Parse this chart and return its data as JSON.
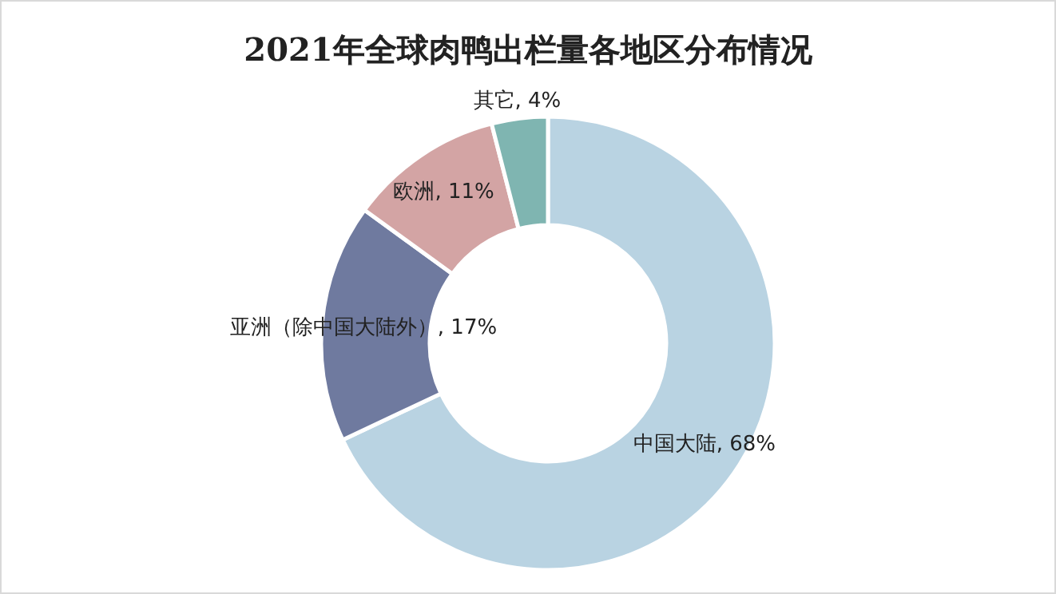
{
  "chart_data": {
    "type": "donut",
    "title": "2021年全球肉鸭出栏量各地区分布情况",
    "categories": [
      "中国大陆",
      "亚洲（除中国大陆外）",
      "欧洲",
      "其它"
    ],
    "values": [
      68,
      17,
      11,
      4
    ],
    "value_labels": [
      "68%",
      "17%",
      "11%",
      "4%"
    ],
    "colors": [
      "#b9d3e2",
      "#6f7a9f",
      "#d3a4a4",
      "#7fb5b1"
    ],
    "legend": false
  }
}
